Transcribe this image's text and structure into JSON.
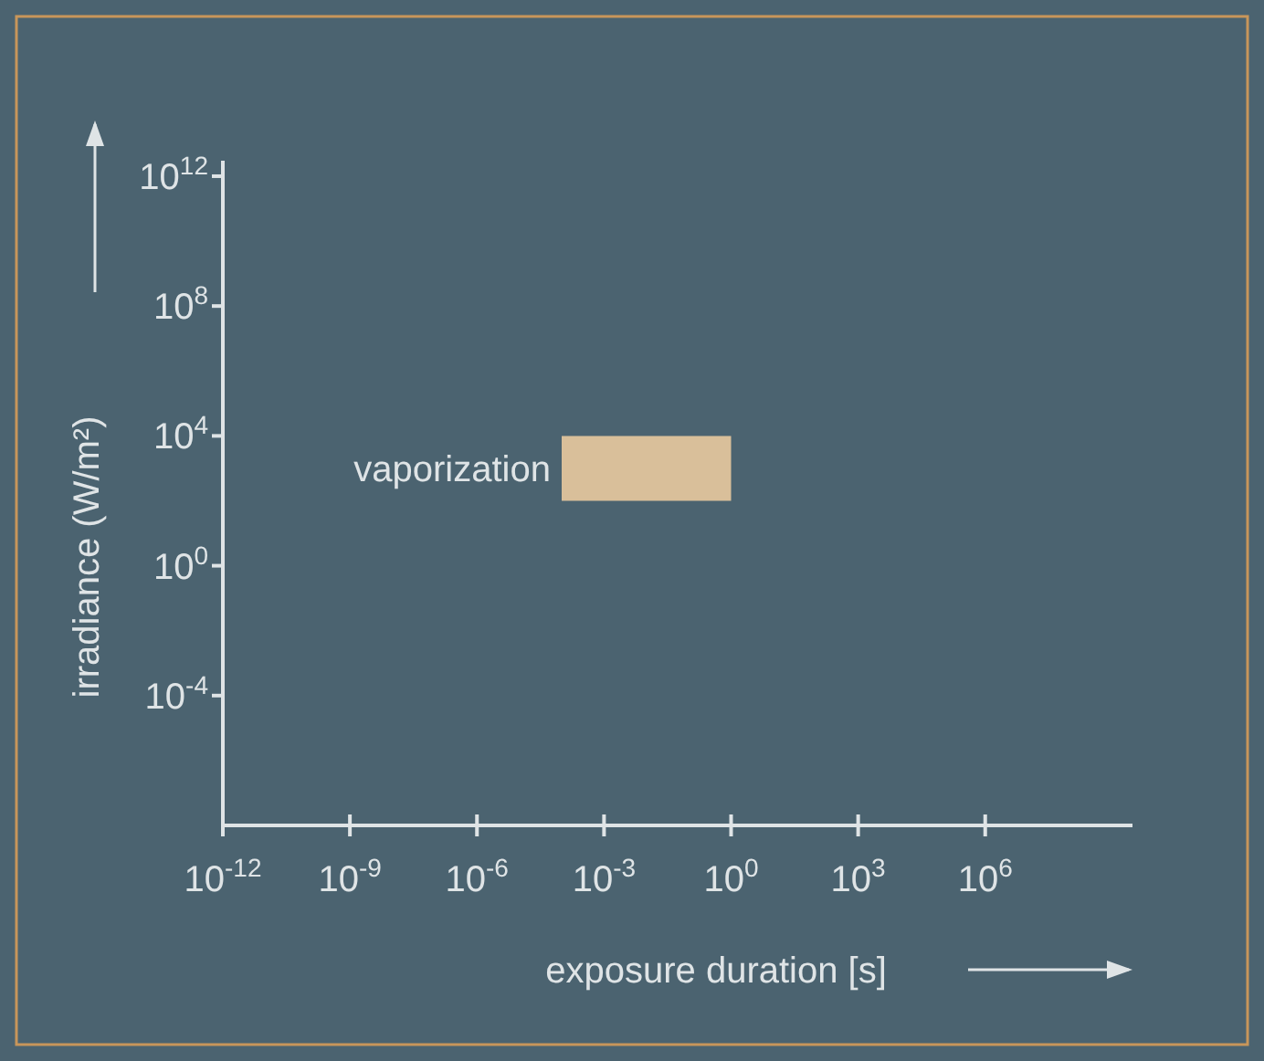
{
  "chart_data": {
    "type": "area",
    "xlabel": "exposure duration  [s]",
    "ylabel": "irradiance  (W/m²)",
    "log": "xy",
    "xlim": [
      1e-12,
      3000000000.0
    ],
    "ylim": [
      1e-08,
      3000000000000.0
    ],
    "xticks": [
      {
        "value": 1e-12,
        "label": "10$^{-12}$"
      },
      {
        "value": 1e-09,
        "label": "10$^{-9}$"
      },
      {
        "value": 1e-06,
        "label": "10$^{-6}$"
      },
      {
        "value": 0.001,
        "label": "10$^{-3}$"
      },
      {
        "value": 1,
        "label": "10$^{0}$"
      },
      {
        "value": 1000.0,
        "label": "10$^{3}$"
      },
      {
        "value": 1000000.0,
        "label": "10$^{6}$"
      }
    ],
    "yticks": [
      {
        "value": 0.0001,
        "label": "10$^{-4}$"
      },
      {
        "value": 1,
        "label": "10$^{0}$"
      },
      {
        "value": 10000.0,
        "label": "10$^{4}$"
      },
      {
        "value": 100000000.0,
        "label": "10$^{8}$"
      },
      {
        "value": 1000000000000.0,
        "label": "10$^{12}$"
      }
    ],
    "series": [
      {
        "color": "#d9bf9a",
        "x": [
          0.0001,
          1
        ],
        "values": [
          null,
          null
        ],
        "lower": [
          100.0,
          100.0
        ],
        "upper": [
          10000.0,
          10000.0
        ]
      }
    ],
    "annotations": [
      {
        "text": "vaporization",
        "x": 0.0001,
        "y": 1000.0
      }
    ]
  }
}
